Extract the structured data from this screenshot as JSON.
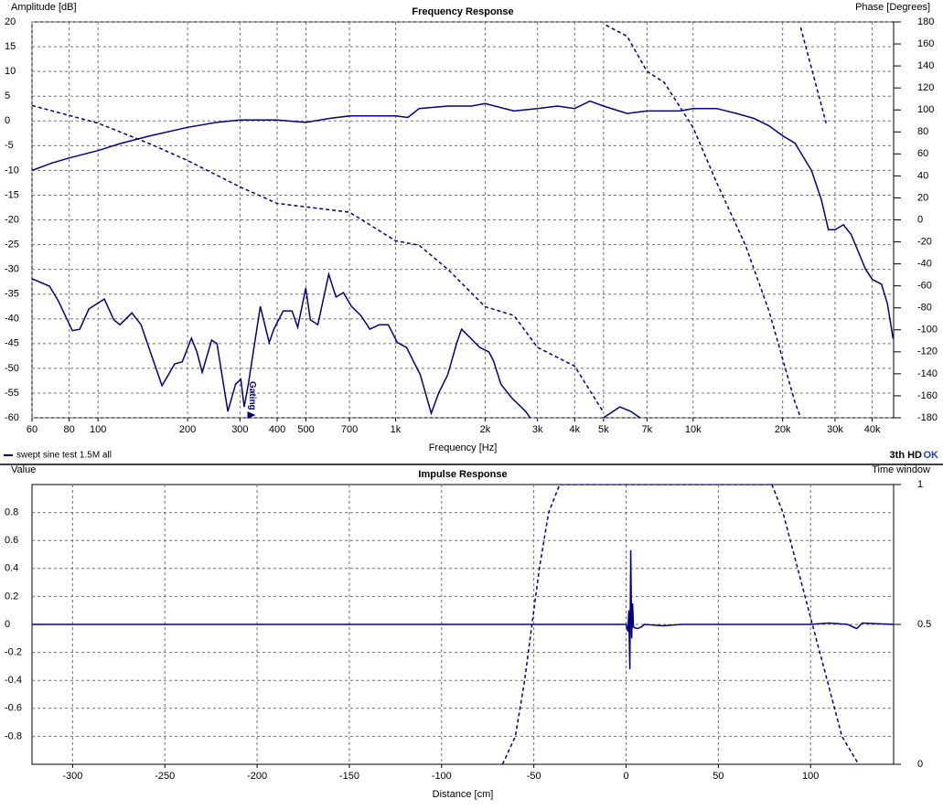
{
  "chart_data": [
    {
      "type": "line",
      "title": "Frequency Response",
      "xlabel": "Frequency [Hz]",
      "ylabel": "Amplitude [dB]",
      "y2label": "Phase [Degrees]",
      "xscale": "log",
      "xlim": [
        60,
        47200
      ],
      "xticks": [
        60,
        80,
        100,
        200,
        300,
        400,
        500,
        700,
        {
          "value": 1000,
          "label": "1k"
        },
        {
          "value": 2000,
          "label": "2k"
        },
        {
          "value": 3000,
          "label": "3k"
        },
        {
          "value": 4000,
          "label": "4k"
        },
        {
          "value": 5000,
          "label": "5k"
        },
        {
          "value": 7000,
          "label": "7k"
        },
        {
          "value": 10000,
          "label": "10k"
        },
        {
          "value": 20000,
          "label": "20k"
        },
        {
          "value": 30000,
          "label": "30k"
        },
        {
          "value": 40000,
          "label": "40k"
        }
      ],
      "ylim": [
        -60,
        20
      ],
      "yticks": [
        -60,
        -55,
        -50,
        -45,
        -40,
        -35,
        -30,
        -25,
        -20,
        -15,
        -10,
        -5,
        0,
        5,
        10,
        15,
        20
      ],
      "y2lim": [
        -180,
        180
      ],
      "y2ticks": [
        -180,
        -160,
        -140,
        -120,
        -100,
        -80,
        -60,
        -40,
        -20,
        0,
        20,
        40,
        60,
        80,
        100,
        120,
        140,
        160,
        180
      ],
      "grid": true,
      "status": "OK",
      "annotations": [
        {
          "text": "Gating",
          "x": 320
        }
      ],
      "series": [
        {
          "name": "swept sine test 1.5M all",
          "color": "#000080",
          "dash": false,
          "x": [
            60,
            70,
            80,
            100,
            120,
            150,
            200,
            250,
            300,
            400,
            500,
            600,
            700,
            800,
            1000,
            1100,
            1200,
            1500,
            1800,
            2000,
            2500,
            3000,
            3500,
            4000,
            4500,
            5000,
            6000,
            7000,
            8000,
            9000,
            10000,
            12000,
            14000,
            16000,
            18000,
            20000,
            22000,
            25000,
            27000,
            28500,
            30000,
            32000,
            34000,
            38000,
            40000,
            43000,
            45000,
            47000
          ],
          "values": [
            -10,
            -8.5,
            -7.5,
            -6,
            -4.5,
            -3,
            -1.3,
            -0.3,
            0.2,
            0.2,
            -0.3,
            0.5,
            1,
            1,
            1,
            0.7,
            2.5,
            3,
            3,
            3.5,
            2,
            2.5,
            3,
            2.5,
            4,
            3,
            1.5,
            2,
            2,
            2,
            2.5,
            2.5,
            1.5,
            0.5,
            -1,
            -3,
            -4.5,
            -10,
            -16,
            -22,
            -22,
            -21,
            -23,
            -30,
            -32,
            -33,
            -37,
            -44
          ]
        },
        {
          "color": "#000080",
          "dash": true,
          "axis": "y2",
          "x": [
            60,
            100,
            150,
            200,
            300,
            400,
            700,
            1000,
            1200,
            1500,
            2000,
            2500,
            3000,
            4000,
            5000,
            null,
            5100,
            6000,
            7000,
            8000,
            10000,
            12000,
            15000,
            18000,
            22000,
            23000,
            null,
            23000,
            28000
          ],
          "values": [
            104,
            88,
            69,
            54,
            30,
            15,
            7,
            -19,
            -23,
            -45,
            -79,
            -87,
            -116,
            -133,
            -175,
            null,
            177,
            167,
            135,
            125,
            84,
            34,
            -23,
            -83,
            -166,
            -180,
            null,
            175,
            88
          ]
        },
        {
          "name": "3th HD",
          "color": "#000080",
          "dash": false,
          "x": [
            60,
            68.7,
            73.7,
            82,
            86.8,
            93.2,
            105,
            113,
            118.5,
            130,
            139.5,
            150,
            164,
            172.5,
            181,
            192,
            206,
            215,
            224,
            241,
            251,
            273,
            290,
            302,
            310,
            320,
            351,
            376,
            390,
            419,
            449,
            469,
            499,
            517,
            548,
            596,
            631,
            668,
            711,
            764,
            820,
            881,
            945,
            1014,
            1089,
            1211,
            1318,
            1396,
            1497,
            1607,
            1666,
            1787,
            1919,
            2060,
            2134,
            2259,
            2459,
            2737,
            2833,
            null,
            4995,
            5673,
            6176,
            6633
          ],
          "values": [
            -31.9,
            -33.4,
            -36.5,
            -42.4,
            -42.1,
            -38,
            -36,
            -40.2,
            -41.2,
            -38.8,
            -41.2,
            -46.7,
            -53.5,
            -51.3,
            -49.1,
            -48.7,
            -43.9,
            -46.7,
            -50.8,
            -44.3,
            -45,
            -58.7,
            -53.2,
            -52.2,
            -57.8,
            -53.2,
            -37.5,
            -44.8,
            -42.1,
            -38.4,
            -38.4,
            -41.7,
            -33.8,
            -40.2,
            -41.2,
            -31,
            -35.6,
            -34.7,
            -37.5,
            -39.3,
            -42.1,
            -41.2,
            -41.2,
            -44.8,
            -45.8,
            -51.3,
            -59.1,
            -55,
            -51.3,
            -44.8,
            -42.1,
            -43.9,
            -45.8,
            -46.7,
            -48.5,
            -53.2,
            -56,
            -58.7,
            -60,
            null,
            -60,
            -57.8,
            -58.7,
            -60
          ]
        }
      ]
    },
    {
      "type": "line",
      "title": "Impulse Response",
      "xlabel": "Distance [cm]",
      "ylabel": "Value",
      "y2label": "Time window",
      "xlim": [
        -322,
        145
      ],
      "xticks": [
        -300,
        -250,
        -200,
        -150,
        -100,
        -50,
        0,
        50,
        100
      ],
      "ylim": [
        -1,
        1
      ],
      "yticks": [
        -0.8,
        -0.6,
        -0.4,
        -0.2,
        0,
        0.2,
        0.4,
        0.6,
        0.8
      ],
      "y2lim": [
        0,
        1
      ],
      "y2ticks": [
        0,
        0.5,
        1
      ],
      "grid": true,
      "series": [
        {
          "color": "#000080",
          "dash": false,
          "x": [
            -322,
            0,
            1,
            1.5,
            2,
            2.5,
            3,
            3.5,
            4,
            6,
            8,
            10,
            20,
            30,
            60,
            100,
            110,
            120,
            125,
            128,
            145
          ],
          "values": [
            0,
            0,
            -0.05,
            0.1,
            -0.32,
            0.53,
            -0.1,
            0.15,
            -0.02,
            -0.03,
            -0.02,
            0,
            -0.01,
            0,
            0,
            0,
            0.01,
            0,
            -0.03,
            0.01,
            0
          ]
        },
        {
          "color": "#000080",
          "dash": true,
          "axis": "y2",
          "x": [
            -67,
            -60,
            -55,
            -51,
            -47,
            -42,
            -36,
            79,
            85,
            93,
            101,
            109,
            117,
            126
          ],
          "values": [
            0,
            0.1,
            0.3,
            0.5,
            0.7,
            0.9,
            1,
            1,
            0.9,
            0.7,
            0.5,
            0.3,
            0.1,
            0
          ]
        }
      ]
    }
  ]
}
